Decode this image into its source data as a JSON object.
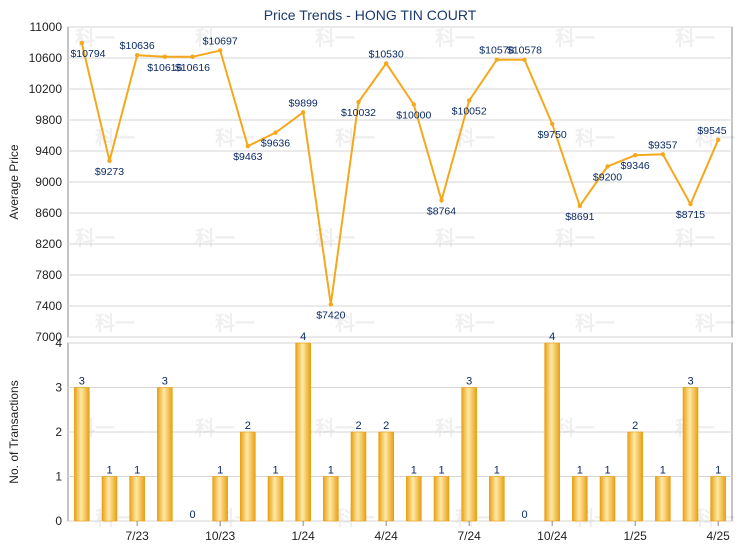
{
  "title": "Price Trends - HONG TIN COURT",
  "watermark_text": "科一",
  "colors": {
    "line": "#f5a81c",
    "bar_light": "#ffe9a8",
    "bar_dark": "#e8a012",
    "grid": "#d6d6d6",
    "axis": "#888888",
    "label": "#0a2a66",
    "text": "#222222",
    "title": "#1a3a6e"
  },
  "chart_data": [
    {
      "type": "line",
      "title": "Price Trends - HONG TIN COURT",
      "ylabel": "Average Price",
      "ylim": [
        7000,
        11000
      ],
      "yticks": [
        7000,
        7400,
        7800,
        8200,
        8600,
        9000,
        9400,
        9800,
        10200,
        10600,
        11000
      ],
      "grid": true,
      "series": [
        {
          "values": [
            10794,
            9273,
            10636,
            10616,
            10616,
            10697,
            9463,
            9636,
            9899,
            7420,
            10032,
            10530,
            10000,
            8764,
            10052,
            10578,
            10578,
            9750,
            8691,
            9200,
            9346,
            9357,
            8715,
            9545
          ],
          "labels": [
            "$10794",
            "$9273",
            "$10636",
            "$10616",
            "$10616",
            "$10697",
            "$9463",
            "$9636",
            "$9899",
            "$7420",
            "$10032",
            "$10530",
            "$10000",
            "$8764",
            "$10052",
            "$10578",
            "$10578",
            "$9750",
            "$8691",
            "$9200",
            "$9346",
            "$9357",
            "$8715",
            "$9545"
          ]
        }
      ]
    },
    {
      "type": "bar",
      "ylabel": "No. of Transactions",
      "ylim": [
        0,
        4
      ],
      "yticks": [
        0,
        1,
        2,
        3,
        4
      ],
      "grid": true,
      "values": [
        3,
        1,
        1,
        3,
        0,
        1,
        2,
        1,
        4,
        1,
        2,
        2,
        1,
        1,
        3,
        1,
        0,
        4,
        1,
        1,
        2,
        1,
        3,
        1
      ],
      "xtick_labels": [
        "7/23",
        "10/23",
        "1/24",
        "4/24",
        "7/24",
        "10/24",
        "1/25",
        "4/25"
      ]
    }
  ]
}
